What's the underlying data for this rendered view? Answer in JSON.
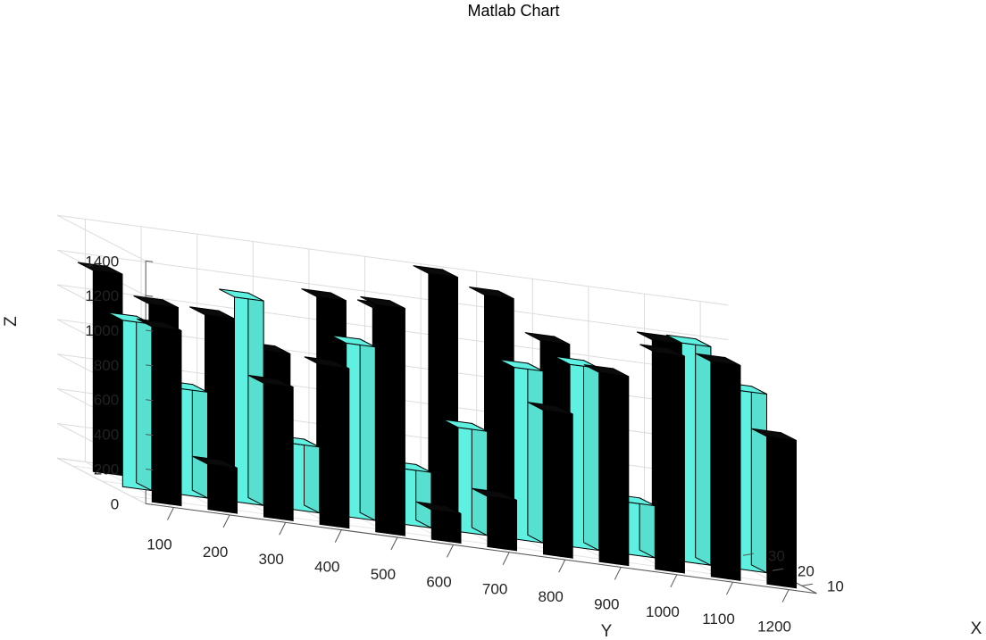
{
  "chart_data": {
    "type": "bar3",
    "title": "Matlab Chart",
    "xlabel": "X",
    "ylabel": "Y",
    "zlabel": "Z",
    "categories": [
      "100",
      "200",
      "300",
      "400",
      "500",
      "600",
      "700",
      "800",
      "900",
      "1000",
      "1100",
      "1200"
    ],
    "x_ticks": [
      "10",
      "20",
      "30"
    ],
    "z_ticks": [
      "0",
      "200",
      "400",
      "600",
      "800",
      "1000",
      "1200",
      "1400"
    ],
    "zlim": [
      0,
      1400
    ],
    "grid": true,
    "colors": {
      "series_1": "#000000",
      "series_2": "#5ef0e0",
      "series_3": "#000000"
    },
    "series": [
      {
        "values": [
          1010,
          260,
          770,
          920,
          1310,
          170,
          290,
          830,
          1090,
          1250,
          1240,
          850
        ]
      },
      {
        "values": [
          960,
          610,
          1180,
          380,
          1000,
          320,
          600,
          990,
          1050,
          300,
          1260,
          1030
        ]
      },
      {
        "values": [
          1160,
          1010,
          990,
          830,
          1180,
          1160,
          1400,
          1320,
          1100,
          920,
          1190,
          870
        ]
      }
    ]
  }
}
